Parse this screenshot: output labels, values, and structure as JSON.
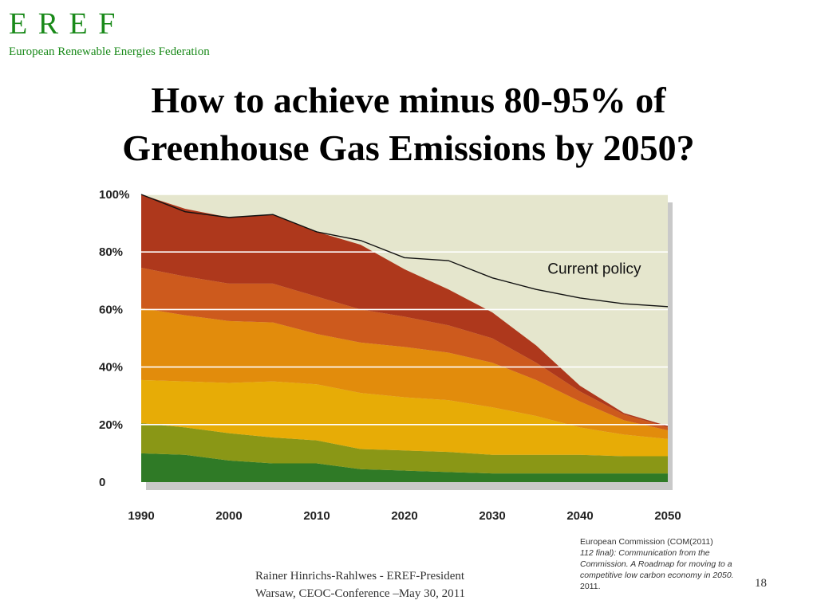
{
  "logo": {
    "mark": "E R E F",
    "subtitle": "European Renewable Energies Federation"
  },
  "title": {
    "line1": "How to achieve minus 80-95% of",
    "line2": "Greenhouse Gas Emissions by 2050?"
  },
  "chart_data": {
    "type": "area",
    "stacked": true,
    "x": [
      1990,
      1995,
      2000,
      2005,
      2010,
      2015,
      2020,
      2025,
      2030,
      2035,
      2040,
      2045,
      2050
    ],
    "x_ticks": [
      "1990",
      "2000",
      "2010",
      "2020",
      "2030",
      "2040",
      "2050"
    ],
    "y_ticks": [
      "0",
      "20%",
      "40%",
      "60%",
      "80%",
      "100%"
    ],
    "xlim": [
      1990,
      2050
    ],
    "ylim": [
      0,
      100
    ],
    "grid": true,
    "background_color": "#e5e6cd",
    "series": [
      {
        "color": "#2f7a26",
        "values": [
          10,
          9.5,
          7.5,
          6.5,
          6.5,
          4.5,
          4,
          3.5,
          3,
          3,
          3,
          3,
          3
        ]
      },
      {
        "color": "#8a9716",
        "values": [
          10.5,
          9.5,
          9.5,
          9,
          8,
          7,
          7,
          7,
          6.5,
          6.5,
          6.5,
          6,
          6
        ]
      },
      {
        "color": "#e7ac06",
        "values": [
          15,
          16,
          17.5,
          19.5,
          19.5,
          19.5,
          18.5,
          18,
          16.5,
          13.5,
          9.5,
          7.5,
          6
        ]
      },
      {
        "color": "#e28c0c",
        "values": [
          25,
          23,
          21.5,
          20.5,
          17.5,
          17.5,
          17.5,
          16.5,
          15.5,
          12.5,
          9,
          5,
          3
        ]
      },
      {
        "color": "#cd5a1d",
        "values": [
          14,
          13.5,
          13,
          13.5,
          13,
          11.5,
          10.5,
          9.5,
          8.5,
          6,
          3.5,
          2,
          1
        ]
      },
      {
        "color": "#ae381c",
        "values": [
          25.5,
          23.5,
          23,
          24,
          22.5,
          22.5,
          16.5,
          12.5,
          9,
          6,
          2,
          0.5,
          0.5
        ]
      }
    ],
    "lines": [
      {
        "name": "Current policy",
        "color": "#111111",
        "values": [
          100,
          94,
          92,
          93,
          87,
          84,
          78,
          77,
          71,
          67,
          64,
          62,
          61
        ]
      }
    ],
    "annotations": [
      {
        "text": "Current policy"
      }
    ]
  },
  "source": {
    "line1": "European Commission (COM(2011)",
    "line2": "112 final): Communication from the",
    "line3": "Commission. A Roadmap for moving to a",
    "line4": "competitive low carbon economy in 2050.",
    "line5": "2011."
  },
  "footer": {
    "line1": "Rainer Hinrichs-Rahlwes  - EREF-President",
    "line2": "Warsaw, CEOC-Conference –May 30, 2011"
  },
  "page_number": "18"
}
